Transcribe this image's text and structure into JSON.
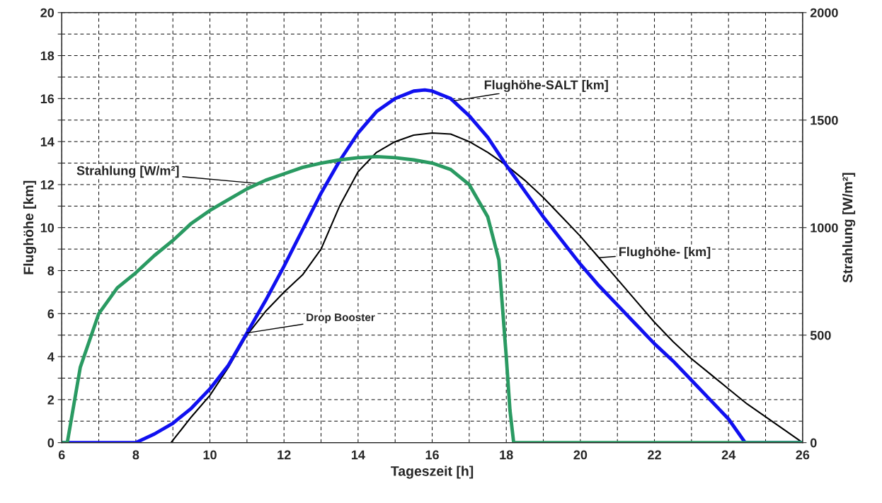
{
  "chart_data": {
    "type": "line",
    "xlabel": "Tageszeit [h]",
    "ylabel": "Flughöhe [km]",
    "y2label": "Strahlung [W/m²]",
    "xlim": [
      6,
      26
    ],
    "xticks": [
      6,
      {
        "value": 7,
        "label": null
      },
      8,
      {
        "value": 9,
        "label": null
      },
      10,
      {
        "value": 11,
        "label": null
      },
      12,
      {
        "value": 13,
        "label": null
      },
      14,
      {
        "value": 15,
        "label": null
      },
      16,
      {
        "value": 17,
        "label": null
      },
      18,
      {
        "value": 19,
        "label": null
      },
      20,
      {
        "value": 21,
        "label": null
      },
      22,
      {
        "value": 23,
        "label": null
      },
      24,
      {
        "value": 25,
        "label": null
      },
      26
    ],
    "ylim": [
      0,
      20
    ],
    "yticks": [
      0,
      {
        "value": 1,
        "label": null
      },
      2,
      {
        "value": 3,
        "label": null
      },
      4,
      {
        "value": 5,
        "label": null
      },
      6,
      {
        "value": 7,
        "label": null
      },
      8,
      {
        "value": 9,
        "label": null
      },
      10,
      {
        "value": 11,
        "label": null
      },
      12,
      {
        "value": 13,
        "label": null
      },
      14,
      {
        "value": 15,
        "label": null
      },
      16,
      {
        "value": 17,
        "label": null
      },
      18,
      {
        "value": 19,
        "label": null
      },
      20
    ],
    "y2lim": [
      0,
      2000
    ],
    "y2ticks": [
      0,
      500,
      1000,
      1500,
      2000
    ],
    "grid": true,
    "legend": false,
    "line_style": "solid",
    "marker": "none",
    "series": [
      {
        "color": "#2a9a62",
        "axis": "y2",
        "x": [
          6,
          6.15,
          6.3,
          6.5,
          7,
          7.5,
          8,
          8.5,
          9,
          9.5,
          10,
          10.5,
          11,
          11.5,
          12,
          12.5,
          13,
          13.5,
          14,
          14.5,
          15,
          15.5,
          16,
          16.5,
          17,
          17.5,
          17.8,
          18,
          18.1,
          18.2,
          26
        ],
        "values": [
          0,
          0,
          150,
          350,
          600,
          720,
          790,
          870,
          940,
          1020,
          1080,
          1130,
          1180,
          1220,
          1250,
          1280,
          1300,
          1315,
          1325,
          1330,
          1325,
          1315,
          1300,
          1270,
          1200,
          1050,
          850,
          400,
          150,
          0,
          0
        ]
      },
      {
        "color": "#000000",
        "x": [
          8.95,
          9.5,
          10,
          10.5,
          11,
          11.5,
          12,
          12.5,
          13,
          13.5,
          14,
          14.5,
          15,
          15.5,
          16,
          16.5,
          17,
          17.5,
          18,
          18.5,
          19,
          19.5,
          20,
          20.5,
          21,
          21.5,
          22,
          22.5,
          23,
          23.5,
          24,
          24.5,
          25,
          25.5,
          26
        ],
        "values": [
          0,
          1.2,
          2.2,
          3.5,
          5.0,
          6.1,
          7.0,
          7.8,
          9.0,
          11.0,
          12.6,
          13.5,
          14.0,
          14.3,
          14.4,
          14.35,
          14.0,
          13.5,
          12.9,
          12.2,
          11.4,
          10.5,
          9.6,
          8.6,
          7.6,
          6.6,
          5.6,
          4.7,
          3.9,
          3.2,
          2.5,
          1.8,
          1.2,
          0.6,
          0
        ]
      },
      {
        "color": "#1010f0",
        "x": [
          6,
          8,
          8.5,
          9,
          9.5,
          10,
          10.5,
          11,
          11.5,
          12,
          12.5,
          13,
          13.5,
          14,
          14.5,
          15,
          15.5,
          15.8,
          16,
          16.5,
          17,
          17.5,
          18,
          18.5,
          19,
          19.5,
          20,
          20.5,
          21,
          21.5,
          22,
          22.5,
          23,
          23.5,
          24,
          24.45,
          26
        ],
        "values": [
          0,
          0,
          0.4,
          0.9,
          1.6,
          2.5,
          3.6,
          5.1,
          6.6,
          8.2,
          9.9,
          11.6,
          13.1,
          14.4,
          15.4,
          16.0,
          16.35,
          16.4,
          16.35,
          16.0,
          15.2,
          14.2,
          12.9,
          11.7,
          10.5,
          9.4,
          8.3,
          7.3,
          6.4,
          5.5,
          4.6,
          3.8,
          2.9,
          2.0,
          1.1,
          0,
          0
        ]
      }
    ],
    "annotations": [
      {
        "text": "Strahlung [W/m²]",
        "x": 11.3,
        "y": 12.05
      },
      {
        "text": "Flughöhe-SALT [km]",
        "x": 16.6,
        "y": 15.9
      },
      {
        "text": "Flughöhe- [km]",
        "x": 20.5,
        "y": 8.6
      },
      {
        "text": "Drop Booster",
        "x": 11,
        "y": 5.1
      }
    ]
  }
}
